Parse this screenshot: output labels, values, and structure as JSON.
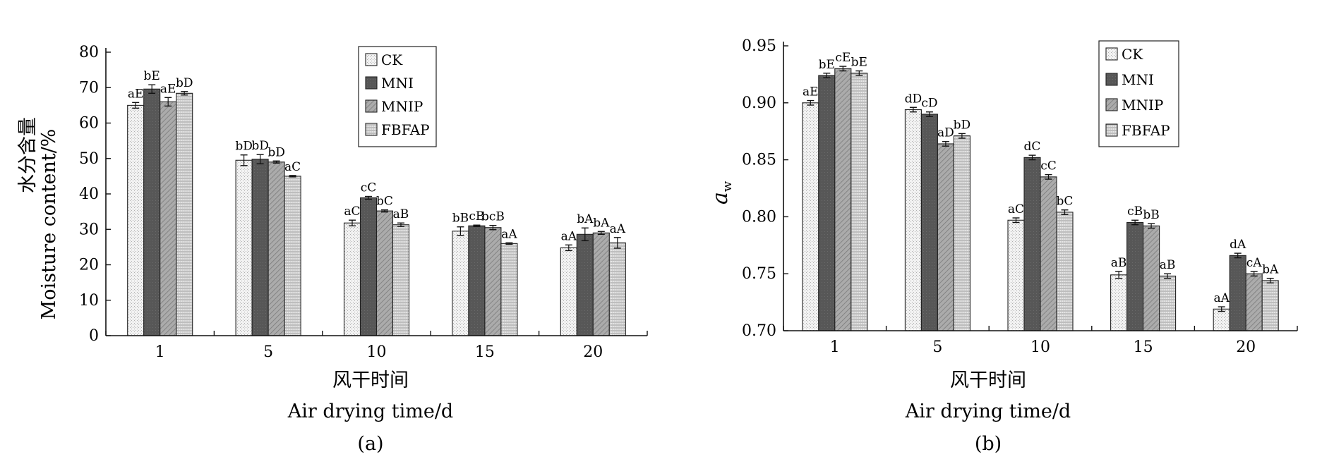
{
  "chart_data": [
    {
      "type": "bar",
      "panel_label": "(a)",
      "xlabel_cn": "风干时间",
      "xlabel": "Air drying time/d",
      "ylabel_cn": "水分含量",
      "ylabel": "Moisture content/%",
      "categories": [
        "1",
        "5",
        "10",
        "15",
        "20"
      ],
      "ylim": [
        0,
        80
      ],
      "yticks": [
        "0",
        "10",
        "20",
        "30",
        "40",
        "50",
        "60",
        "70",
        "80"
      ],
      "legend_position": "top-center",
      "series": [
        {
          "name": "CK",
          "values": [
            65.0,
            49.5,
            31.8,
            29.5,
            24.8
          ],
          "errors": [
            0.8,
            1.5,
            0.8,
            1.2,
            0.8
          ],
          "labels": [
            "aE",
            "bD",
            "aC",
            "bB",
            "aA"
          ]
        },
        {
          "name": "MNI",
          "values": [
            69.6,
            49.8,
            38.9,
            31.0,
            28.6
          ],
          "errors": [
            1.2,
            1.3,
            0.4,
            0.2,
            1.8
          ],
          "labels": [
            "bE",
            "bD",
            "cC",
            "cB",
            "bA"
          ]
        },
        {
          "name": "MNIP",
          "values": [
            66.0,
            49.0,
            35.2,
            30.5,
            29.0
          ],
          "errors": [
            1.2,
            0.3,
            0.3,
            0.6,
            0.4
          ],
          "labels": [
            "aE",
            "bD",
            "bC",
            "bcB",
            "bA"
          ]
        },
        {
          "name": "FBFAP",
          "values": [
            68.4,
            45.0,
            31.3,
            26.0,
            26.2
          ],
          "errors": [
            0.5,
            0.2,
            0.5,
            0.2,
            1.5
          ],
          "labels": [
            "bD",
            "aC",
            "aB",
            "aA",
            "aA"
          ]
        }
      ]
    },
    {
      "type": "bar",
      "panel_label": "(b)",
      "xlabel_cn": "风干时间",
      "xlabel": "Air drying time/d",
      "ylabel_main": "a",
      "ylabel_sub": "w",
      "categories": [
        "1",
        "5",
        "10",
        "15",
        "20"
      ],
      "ylim": [
        0.7,
        0.95
      ],
      "yticks": [
        "0.70",
        "0.75",
        "0.80",
        "0.85",
        "0.90",
        "0.95"
      ],
      "legend_position": "top-right",
      "series": [
        {
          "name": "CK",
          "values": [
            0.9,
            0.894,
            0.797,
            0.749,
            0.719
          ],
          "errors": [
            0.002,
            0.002,
            0.002,
            0.003,
            0.002
          ],
          "labels": [
            "aE",
            "dD",
            "aC",
            "aB",
            "aA"
          ]
        },
        {
          "name": "MNI",
          "values": [
            0.924,
            0.89,
            0.852,
            0.795,
            0.766
          ],
          "errors": [
            0.002,
            0.002,
            0.002,
            0.002,
            0.002
          ],
          "labels": [
            "bE",
            "cD",
            "dC",
            "cB",
            "dA"
          ]
        },
        {
          "name": "MNIP",
          "values": [
            0.93,
            0.864,
            0.835,
            0.792,
            0.75
          ],
          "errors": [
            0.002,
            0.002,
            0.002,
            0.002,
            0.002
          ],
          "labels": [
            "cE",
            "aD",
            "cC",
            "bB",
            "cA"
          ]
        },
        {
          "name": "FBFAP",
          "values": [
            0.926,
            0.871,
            0.804,
            0.748,
            0.744
          ],
          "errors": [
            0.002,
            0.002,
            0.002,
            0.002,
            0.002
          ],
          "labels": [
            "bE",
            "bD",
            "bC",
            "aB",
            "bA"
          ]
        }
      ]
    }
  ]
}
